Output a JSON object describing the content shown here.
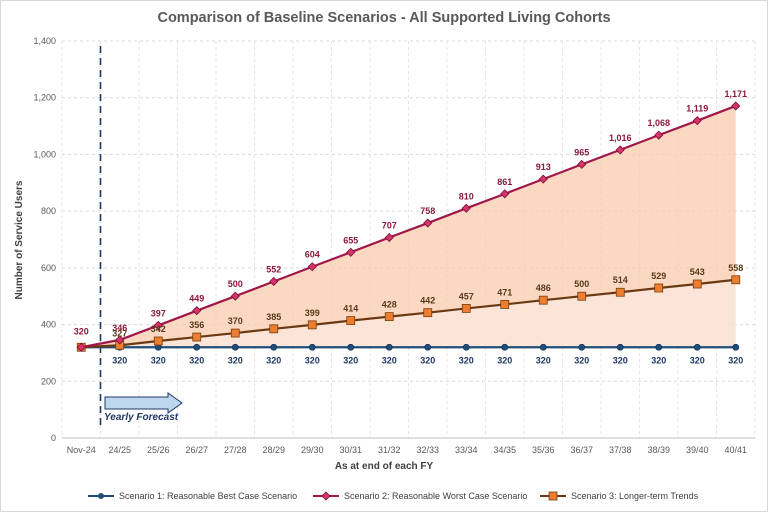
{
  "chart_data": {
    "type": "line",
    "title": "Comparison of Baseline Scenarios - All Supported Living Cohorts",
    "xlabel": "As at end of each FY",
    "ylabel": "Number of Service Users",
    "ylim": [
      0,
      1400
    ],
    "yticks": [
      0,
      200,
      400,
      600,
      800,
      1000,
      1200,
      1400
    ],
    "ytick_labels": [
      "0",
      "200",
      "400",
      "600",
      "800",
      "1,000",
      "1,200",
      "1,400"
    ],
    "categories": [
      "Nov-24",
      "24/25",
      "25/26",
      "26/27",
      "27/28",
      "28/29",
      "29/30",
      "30/31",
      "31/32",
      "32/33",
      "33/34",
      "34/35",
      "35/36",
      "36/37",
      "37/38",
      "38/39",
      "39/40",
      "40/41"
    ],
    "start_label": "320",
    "annotation": "Yearly Forecast",
    "series": [
      {
        "name": "Scenario 1: Reasonable Best Case Scenario",
        "color": "#1f4e79",
        "marker": "circle",
        "values": [
          320,
          320,
          320,
          320,
          320,
          320,
          320,
          320,
          320,
          320,
          320,
          320,
          320,
          320,
          320,
          320,
          320,
          320
        ],
        "labels": [
          "",
          "320",
          "320",
          "320",
          "320",
          "320",
          "320",
          "320",
          "320",
          "320",
          "320",
          "320",
          "320",
          "320",
          "320",
          "320",
          "320",
          "320"
        ]
      },
      {
        "name": "Scenario 2: Reasonable Worst Case Scenario",
        "color": "#a0174a",
        "marker": "diamond",
        "values": [
          320,
          346,
          397,
          449,
          500,
          552,
          604,
          655,
          707,
          758,
          810,
          861,
          913,
          965,
          1016,
          1068,
          1119,
          1171
        ],
        "labels": [
          "",
          "346",
          "397",
          "449",
          "500",
          "552",
          "604",
          "655",
          "707",
          "758",
          "810",
          "861",
          "913",
          "965",
          "1,016",
          "1,068",
          "1,119",
          "1,171"
        ]
      },
      {
        "name": "Scenario 3: Longer-term Trends",
        "color": "#ed7d31",
        "line_color": "#6b3a12",
        "marker": "square",
        "values": [
          320,
          327,
          342,
          356,
          370,
          385,
          399,
          414,
          428,
          442,
          457,
          471,
          486,
          500,
          514,
          529,
          543,
          558
        ],
        "labels": [
          "",
          "327",
          "342",
          "356",
          "370",
          "385",
          "399",
          "414",
          "428",
          "442",
          "457",
          "471",
          "486",
          "500",
          "514",
          "529",
          "543",
          "558"
        ]
      }
    ]
  }
}
